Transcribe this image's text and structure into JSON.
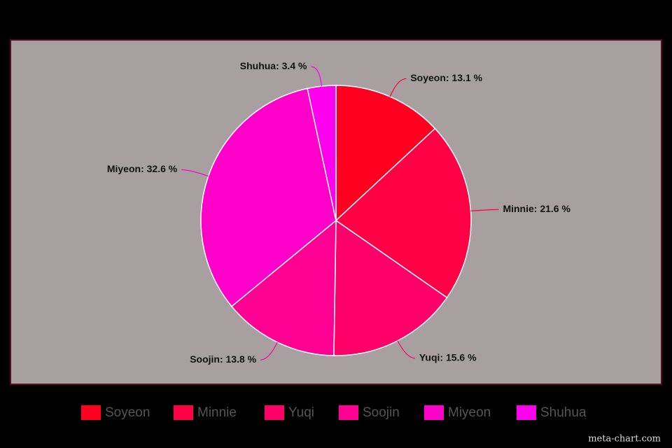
{
  "chart_data": {
    "type": "pie",
    "categories": [
      "Soyeon",
      "Minnie",
      "Yuqi",
      "Soojin",
      "Miyeon",
      "Shuhua"
    ],
    "values": [
      13.1,
      21.6,
      15.6,
      13.8,
      32.6,
      3.4
    ],
    "value_labels": [
      "Soyeon: 13.1 %",
      "Minnie: 21.6 %",
      "Yuqi: 15.6 %",
      "Soojin: 13.8 %",
      "Miyeon: 32.6 %",
      "Shuhua: 3.4 %"
    ],
    "colors": [
      "#ff0020",
      "#ff0045",
      "#ff0068",
      "#ff0092",
      "#ff00c8",
      "#ff00ee"
    ],
    "legend": "bottom",
    "watermark": "meta-chart.com"
  }
}
